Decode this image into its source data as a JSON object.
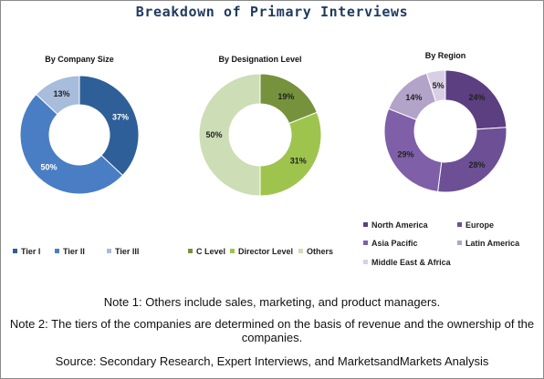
{
  "title": "Breakdown of Primary Interviews",
  "chart_data": [
    {
      "type": "pie",
      "title": "By Company Size",
      "categories": [
        "Tier I",
        "Tier II",
        "Tier III"
      ],
      "values": [
        37,
        50,
        13
      ],
      "labels": [
        "37%",
        "50%",
        "13%"
      ],
      "colors": [
        "#2e5f98",
        "#4a7ec4",
        "#a8bcdb"
      ],
      "label_colors": [
        "#ffffff",
        "#ffffff",
        "#222222"
      ],
      "legend_position": "bottom"
    },
    {
      "type": "pie",
      "title": "By Designation Level",
      "categories": [
        "C Level",
        "Director Level",
        "Others"
      ],
      "values": [
        19,
        31,
        50
      ],
      "labels": [
        "19%",
        "31%",
        "50%"
      ],
      "colors": [
        "#76923c",
        "#9ec44e",
        "#cdddb5"
      ],
      "label_colors": [
        "#222222",
        "#222222",
        "#222222"
      ],
      "legend_position": "bottom"
    },
    {
      "type": "pie",
      "title": "By Region",
      "categories": [
        "North America",
        "Europe",
        "Asia Pacific",
        "Latin America",
        "Middle East & Africa"
      ],
      "values": [
        24,
        28,
        29,
        14,
        5
      ],
      "labels": [
        "24%",
        "28%",
        "29%",
        "14%",
        "5%"
      ],
      "colors": [
        "#5b3f81",
        "#6d4f96",
        "#7e5fa8",
        "#b3a3c9",
        "#d9cfe5"
      ],
      "label_colors": [
        "#222222",
        "#222222",
        "#222222",
        "#222222",
        "#222222"
      ],
      "legend_position": "bottom-right"
    }
  ],
  "notes": {
    "note1": "Note 1: Others include sales, marketing, and product managers.",
    "note2": "Note 2: The tiers of the companies are determined on the basis of revenue and the ownership of the companies.",
    "source": "Source: Secondary Research, Expert Interviews, and MarketsandMarkets Analysis"
  }
}
